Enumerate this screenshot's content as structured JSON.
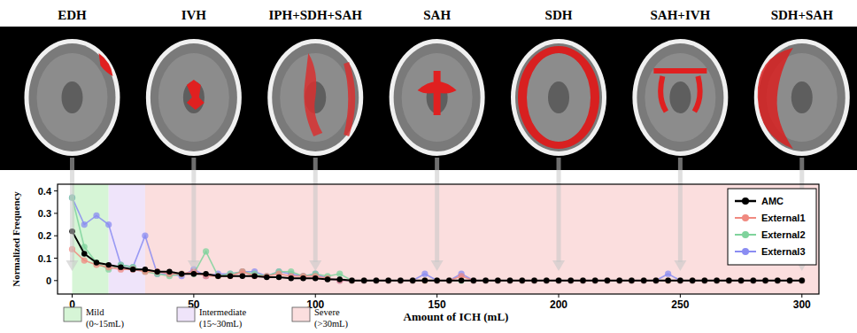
{
  "chart_data": {
    "type": "line",
    "x_label": "Amount of ICH (mL)",
    "y_label": "Normalized Frequency",
    "x": [
      0,
      5,
      10,
      15,
      20,
      25,
      30,
      35,
      40,
      45,
      50,
      55,
      60,
      65,
      70,
      75,
      80,
      85,
      90,
      95,
      100,
      105,
      110,
      115,
      120,
      125,
      130,
      135,
      140,
      145,
      150,
      155,
      160,
      165,
      170,
      175,
      180,
      185,
      190,
      195,
      200,
      205,
      210,
      215,
      220,
      225,
      230,
      235,
      240,
      245,
      250,
      255,
      260,
      265,
      270,
      275,
      280,
      285,
      290,
      295,
      300
    ],
    "xlim": [
      -6,
      307
    ],
    "xticks": [
      0,
      50,
      100,
      150,
      200,
      250,
      300
    ],
    "ylim": [
      -0.06,
      0.43
    ],
    "yticks": [
      0,
      0.1,
      0.2,
      0.3,
      0.4
    ],
    "grid": false,
    "legend": "upper right",
    "marker": "circle",
    "series": [
      {
        "name": "AMC",
        "color": "#000000",
        "values": [
          0.22,
          0.12,
          0.08,
          0.07,
          0.06,
          0.05,
          0.05,
          0.04,
          0.04,
          0.03,
          0.03,
          0.03,
          0.02,
          0.02,
          0.02,
          0.02,
          0.015,
          0.015,
          0.01,
          0.01,
          0.01,
          0.005,
          0.005,
          0,
          0,
          0,
          0,
          0,
          0,
          0,
          0,
          0,
          0,
          0,
          0,
          0,
          0,
          0,
          0,
          0,
          0,
          0,
          0,
          0,
          0,
          0,
          0,
          0,
          0,
          0,
          0,
          0,
          0,
          0,
          0,
          0,
          0,
          0,
          0,
          0,
          0
        ]
      },
      {
        "name": "External1",
        "color": "#f08a80",
        "values": [
          0.14,
          0.09,
          0.07,
          0.06,
          0.05,
          0.05,
          0.04,
          0.04,
          0.03,
          0.03,
          0.04,
          0.02,
          0.02,
          0.02,
          0.04,
          0.02,
          0.02,
          0.03,
          0.02,
          0.02,
          0.02,
          0.01,
          0,
          0,
          0,
          0,
          0,
          0,
          0,
          0,
          0,
          0,
          0.02,
          0,
          0,
          0,
          0,
          0,
          0,
          0,
          0,
          0,
          0,
          0,
          0,
          0,
          0,
          0,
          0,
          0,
          0,
          0,
          0,
          0,
          0,
          0,
          0,
          0,
          0,
          0,
          0
        ]
      },
      {
        "name": "External2",
        "color": "#7fd39c",
        "values": [
          0.37,
          0.15,
          0.08,
          0.05,
          0.07,
          0.06,
          0.04,
          0.03,
          0.02,
          0.03,
          0.03,
          0.13,
          0.02,
          0.03,
          0.04,
          0.03,
          0.02,
          0.04,
          0.04,
          0.02,
          0.03,
          0.02,
          0.03,
          0,
          0,
          0,
          0,
          0,
          0,
          0,
          0,
          0,
          0,
          0,
          0,
          0,
          0,
          0,
          0,
          0,
          0,
          0,
          0,
          0,
          0,
          0,
          0,
          0,
          0,
          0,
          0,
          0,
          0,
          0,
          0,
          0,
          0,
          0,
          0,
          0,
          0
        ]
      },
      {
        "name": "External3",
        "color": "#8a8cf2",
        "values": [
          0.37,
          0.25,
          0.29,
          0.25,
          0.07,
          0.06,
          0.2,
          0.03,
          0.03,
          0.02,
          0.05,
          0.02,
          0.03,
          0.03,
          0.04,
          0.04,
          0.02,
          0.04,
          0.03,
          0.02,
          0.03,
          0.01,
          0,
          0,
          0,
          0,
          0,
          0,
          0,
          0.03,
          0,
          0,
          0.03,
          0,
          0,
          0,
          0,
          0,
          0,
          0,
          0,
          0,
          0,
          0,
          0,
          0,
          0,
          0,
          0,
          0.03,
          0,
          0,
          0,
          0,
          0,
          0,
          0,
          0,
          0,
          0,
          0
        ]
      }
    ],
    "regions": [
      {
        "label": "Mild",
        "range_label": "(0~15mL)",
        "from": 0,
        "to": 15,
        "color": "#d6f5d6"
      },
      {
        "label": "Intermediate",
        "range_label": "(15~30mL)",
        "from": 15,
        "to": 30,
        "color": "#efe4fa"
      },
      {
        "label": "Severe",
        "range_label": "(>30mL)",
        "from": 30,
        "to": 307,
        "color": "#fbdede"
      }
    ],
    "annotations": [
      {
        "label": "EDH",
        "x": 0
      },
      {
        "label": "IVH",
        "x": 50
      },
      {
        "label": "IPH+SDH+SAH",
        "x": 100
      },
      {
        "label": "SAH",
        "x": 150
      },
      {
        "label": "SDH",
        "x": 200
      },
      {
        "label": "SAH+IVH",
        "x": 250
      },
      {
        "label": "SDH+SAH",
        "x": 300
      }
    ]
  }
}
